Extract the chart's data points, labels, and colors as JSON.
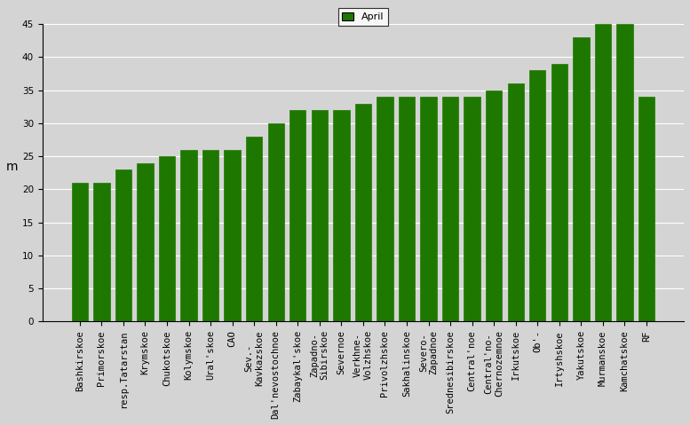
{
  "categories": [
    "Bashkirskoe",
    "Primorskoe",
    "resp.Tatarstan",
    "Krymskoe",
    "Chukotskoe",
    "Kolymskoe",
    "Ural'skoe",
    "CAO",
    "Sev.-\nKavkazskoe",
    "Dal'nevostochnoe",
    "Zabaykal'skoe",
    "Zapadno-\nSibirskoe",
    "Severnoe",
    "Verkhne-\nVolzhskoe",
    "Privolzhskoe",
    "Sakhalinskoe",
    "Severo-\nZapadnoe",
    "Srednesibirskoe",
    "Central'noe",
    "Central'no-\nChernozemnoe",
    "Irkutskoe",
    "Ob'-",
    "Irtyshskoe",
    "Yakutskoe",
    "Murmanskoe",
    "Kamchatskoe",
    "RF"
  ],
  "values": [
    21,
    21,
    23,
    24,
    25,
    26,
    26,
    26,
    28,
    30,
    32,
    32,
    32,
    33,
    34,
    34,
    34,
    34,
    34,
    35,
    36,
    38,
    39,
    43,
    45,
    45,
    34
  ],
  "bar_color": "#1e7800",
  "bar_edge_color": "#1e7800",
  "legend_label": "April",
  "legend_color": "#1e7800",
  "ylabel": "m",
  "ylim": [
    0,
    45
  ],
  "yticks": [
    0,
    5,
    10,
    15,
    20,
    25,
    30,
    35,
    40,
    45
  ],
  "background_color": "#d4d4d4",
  "plot_background_color": "#d4d4d4",
  "grid_color": "#ffffff",
  "tick_fontsize": 7.5,
  "label_fontsize": 8
}
